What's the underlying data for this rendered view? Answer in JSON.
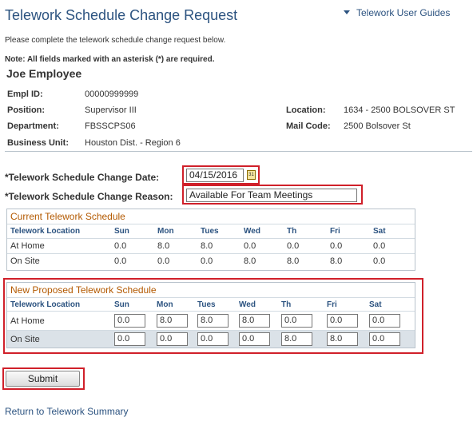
{
  "page_title": "Telework Schedule Change Request",
  "guides_link": "Telework User Guides",
  "intro_text": "Please complete the telework schedule change request below.",
  "note_text": "Note: All fields marked with an asterisk (*) are required.",
  "employee_name": "Joe Employee",
  "employee": {
    "empl_id_label": "Empl ID:",
    "empl_id": "00000999999",
    "position_label": "Position:",
    "position": "Supervisor III",
    "department_label": "Department:",
    "department": "FBSSCPS06",
    "business_unit_label": "Business Unit:",
    "business_unit": "Houston Dist. - Region 6",
    "location_label": "Location:",
    "location": "1634 - 2500 BOLSOVER ST",
    "mail_code_label": "Mail Code:",
    "mail_code": "2500 Bolsover St"
  },
  "form": {
    "change_date_label": "*Telework Schedule Change Date:",
    "change_date": "04/15/2016",
    "change_reason_label": "*Telework Schedule Change Reason:",
    "change_reason": "Available For Team Meetings"
  },
  "calendar_icon": "calendar-icon",
  "days": [
    "Sun",
    "Mon",
    "Tues",
    "Wed",
    "Th",
    "Fri",
    "Sat"
  ],
  "location_col_label": "Telework Location",
  "current_schedule": {
    "title": "Current Telework Schedule",
    "rows": [
      {
        "label": "At Home",
        "values": [
          "0.0",
          "8.0",
          "8.0",
          "0.0",
          "0.0",
          "0.0",
          "0.0"
        ]
      },
      {
        "label": "On Site",
        "values": [
          "0.0",
          "0.0",
          "0.0",
          "8.0",
          "8.0",
          "8.0",
          "0.0"
        ]
      }
    ]
  },
  "proposed_schedule": {
    "title": "New Proposed Telework Schedule",
    "rows": [
      {
        "label": "At Home",
        "values": [
          "0.0",
          "8.0",
          "8.0",
          "8.0",
          "0.0",
          "0.0",
          "0.0"
        ]
      },
      {
        "label": "On Site",
        "values": [
          "0.0",
          "0.0",
          "0.0",
          "0.0",
          "8.0",
          "8.0",
          "0.0"
        ]
      }
    ]
  },
  "submit_label": "Submit",
  "return_link": "Return to Telework Summary",
  "colors": {
    "link": "#2c5380",
    "grid_title": "#b35900",
    "highlight": "#d0202a",
    "grid_border": "#b9c3cc"
  }
}
